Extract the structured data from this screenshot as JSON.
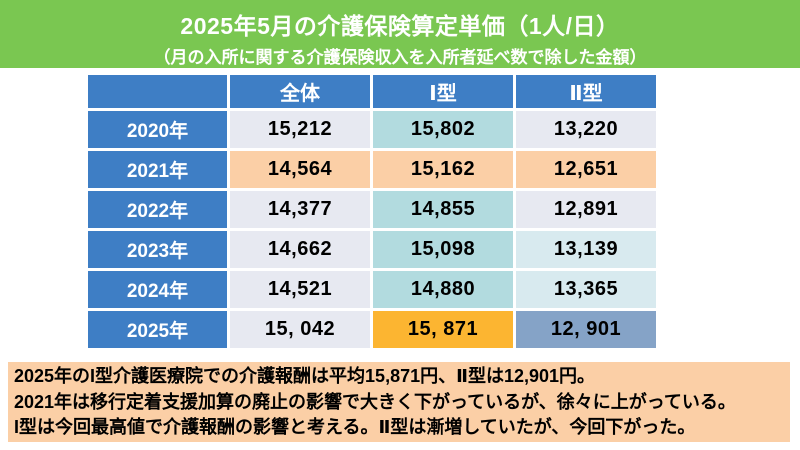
{
  "header": {
    "title": "2025年5月の介護保険算定単価（1人/日）",
    "subtitle": "（月の入所に関する介護保険収入を入所者延べ数で除した金額）"
  },
  "table": {
    "columns": [
      "",
      "全体",
      "Ⅰ型",
      "Ⅱ型"
    ],
    "rows": [
      {
        "year": "2020年",
        "values": [
          "15,212",
          "15,802",
          "13,220"
        ]
      },
      {
        "year": "2021年",
        "values": [
          "14,564",
          "15,162",
          "12,651"
        ]
      },
      {
        "year": "2022年",
        "values": [
          "14,377",
          "14,855",
          "12,891"
        ]
      },
      {
        "year": "2023年",
        "values": [
          "14,662",
          "15,098",
          "13,139"
        ]
      },
      {
        "year": "2024年",
        "values": [
          "14,521",
          "14,880",
          "13,365"
        ]
      },
      {
        "year": "2025年",
        "values": [
          "15, 042",
          "15, 871",
          "12, 901"
        ]
      }
    ]
  },
  "notes": {
    "lines": [
      "2025年のI型介護医療院での介護報酬は平均15,871円、Ⅱ型は12,901円。",
      "2021年は移行定着支援加算の廃止の影響で大きく下がっているが、徐々に上がっている。",
      "I型は今回最高値で介護報酬の影響と考える。Ⅱ型は漸増していたが、今回下がった。"
    ]
  },
  "colors": {
    "band_green": "#7AC751",
    "header_blue": "#3E7EC5",
    "lavender": "#E7E9F1",
    "teal": "#B2DBDF",
    "light_teal": "#D8EAEF",
    "peach": "#FBCFA6",
    "gold": "#FCB531",
    "steel_blue": "#85A3C7",
    "note_bg": "#FBCFA6"
  }
}
